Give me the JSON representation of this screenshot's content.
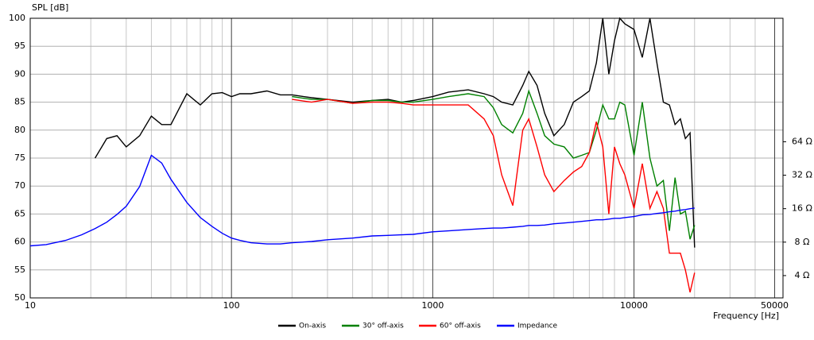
{
  "chart_data": {
    "type": "line",
    "y_label": "SPL [dB]",
    "x_label": "Frequency [Hz]",
    "x_log": true,
    "y2_log": true,
    "grid": true,
    "xlim": [
      10,
      55000
    ],
    "ylim": [
      50,
      100
    ],
    "y2lim": [
      2.52,
      826
    ],
    "xticks": [
      10,
      100,
      1000,
      10000,
      50000
    ],
    "xminorticks": [
      20,
      30,
      40,
      50,
      60,
      70,
      80,
      90,
      200,
      300,
      400,
      500,
      600,
      700,
      800,
      900,
      2000,
      3000,
      4000,
      5000,
      6000,
      7000,
      8000,
      9000,
      20000,
      30000,
      40000
    ],
    "yticks": [
      50,
      55,
      60,
      65,
      70,
      75,
      80,
      85,
      90,
      95,
      100
    ],
    "y2ticks": [
      {
        "value": 4,
        "label": "4 Ω"
      },
      {
        "value": 8,
        "label": "8 Ω"
      },
      {
        "value": 16,
        "label": "16 Ω"
      },
      {
        "value": 32,
        "label": "32 Ω"
      },
      {
        "value": 64,
        "label": "64 Ω"
      }
    ],
    "x": [
      10,
      12,
      15,
      18,
      21,
      24,
      27,
      30,
      35,
      40,
      45,
      50,
      60,
      70,
      80,
      90,
      100,
      110,
      125,
      150,
      175,
      200,
      250,
      300,
      400,
      500,
      600,
      700,
      800,
      1000,
      1200,
      1500,
      1800,
      2000,
      2200,
      2500,
      2800,
      3000,
      3300,
      3600,
      4000,
      4500,
      5000,
      5500,
      6000,
      6500,
      7000,
      7500,
      8000,
      8500,
      9000,
      10000,
      11000,
      12000,
      13000,
      14000,
      15000,
      16000,
      17000,
      18000,
      19000,
      20000
    ],
    "series": [
      {
        "name": "On-axis",
        "color": "#000000",
        "values": [
          null,
          null,
          null,
          null,
          75,
          78.5,
          79,
          77,
          79,
          82.5,
          81,
          81,
          86.5,
          84.5,
          86.5,
          86.7,
          86,
          86.5,
          86.5,
          87,
          86.3,
          86.3,
          85.8,
          85.5,
          85,
          85.3,
          85.5,
          85,
          85.3,
          86,
          86.8,
          87.2,
          86.5,
          86,
          85,
          84.5,
          88,
          90.5,
          88,
          83,
          79,
          81,
          85,
          86,
          87,
          92,
          100,
          90,
          96,
          100,
          99,
          98,
          93,
          100,
          92,
          85,
          84.5,
          81,
          82,
          78.5,
          79.5,
          59
        ]
      },
      {
        "name": "30° off-axis",
        "color": "#008000",
        "values": [
          null,
          null,
          null,
          null,
          null,
          null,
          null,
          null,
          null,
          null,
          null,
          null,
          null,
          null,
          null,
          null,
          null,
          null,
          null,
          null,
          null,
          86,
          85.5,
          85.5,
          84.8,
          85.3,
          85.3,
          85,
          85,
          85.5,
          86,
          86.5,
          86,
          84,
          81,
          79.5,
          83,
          87,
          83,
          79,
          77.5,
          77,
          75,
          75.5,
          76,
          80,
          84.5,
          82,
          82,
          85,
          84.5,
          75.5,
          85,
          75,
          70,
          71,
          62,
          71.5,
          65,
          65.5,
          60.5,
          63
        ]
      },
      {
        "name": "60° off-axis",
        "color": "#ff0000",
        "values": [
          null,
          null,
          null,
          null,
          null,
          null,
          null,
          null,
          null,
          null,
          null,
          null,
          null,
          null,
          null,
          null,
          null,
          null,
          null,
          null,
          null,
          85.5,
          85,
          85.5,
          84.8,
          85,
          85,
          84.8,
          84.5,
          84.5,
          84.5,
          84.5,
          82,
          79,
          72,
          66.5,
          80,
          82,
          77,
          72,
          69,
          71,
          72.5,
          73.5,
          76,
          81.5,
          77,
          65,
          77,
          74,
          72,
          66,
          74,
          66,
          69,
          66,
          58,
          58,
          58,
          55,
          51,
          54.5
        ]
      },
      {
        "name": "Impedance",
        "color": "#0000ff",
        "axis": "y2",
        "values": [
          7.4,
          7.6,
          8.3,
          9.3,
          10.6,
          12.1,
          14.2,
          16.8,
          25.3,
          48.3,
          41.2,
          29.4,
          18.2,
          13.3,
          11.1,
          9.6,
          8.7,
          8.3,
          7.9,
          7.7,
          7.7,
          7.9,
          8.1,
          8.4,
          8.7,
          9.1,
          9.2,
          9.3,
          9.4,
          9.9,
          10.1,
          10.4,
          10.6,
          10.7,
          10.7,
          10.9,
          11.1,
          11.3,
          11.3,
          11.4,
          11.7,
          11.9,
          12.1,
          12.3,
          12.5,
          12.7,
          12.7,
          12.9,
          13.1,
          13.1,
          13.3,
          13.6,
          14.1,
          14.2,
          14.5,
          14.7,
          15.0,
          15.2,
          15.5,
          15.7,
          16.0,
          16.2
        ]
      }
    ]
  }
}
